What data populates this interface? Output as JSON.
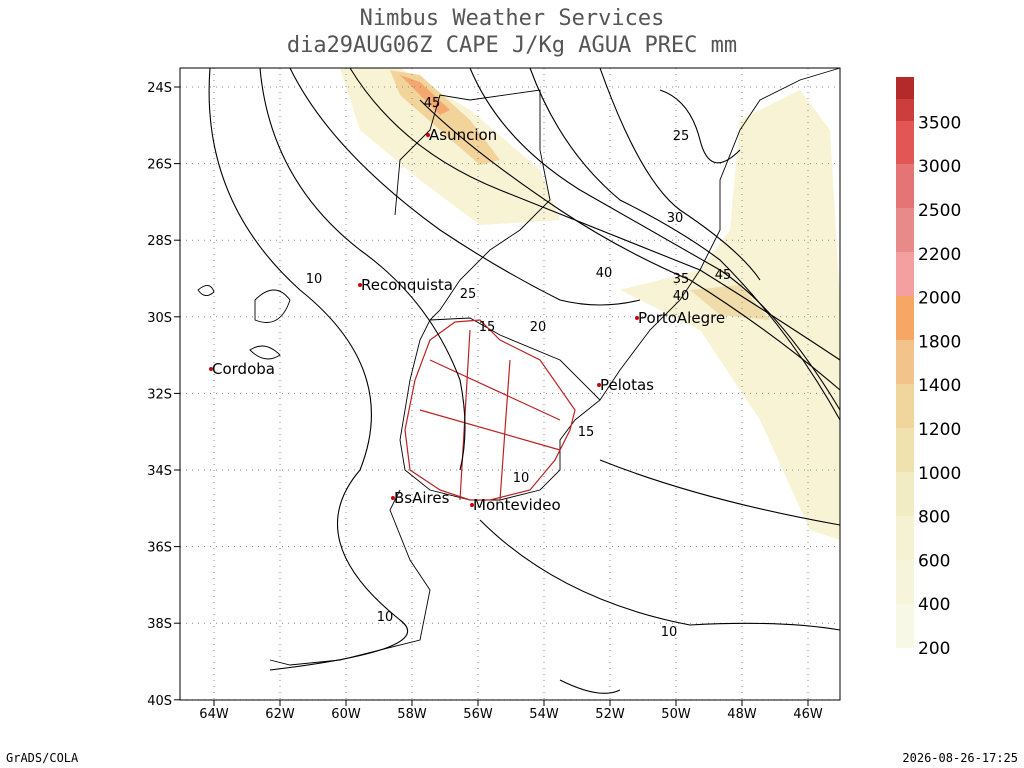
{
  "title": [
    "Nimbus Weather Services",
    "dia29AUG06Z CAPE J/Kg AGUA PREC mm"
  ],
  "lat_labels": [
    "24S",
    "26S",
    "28S",
    "30S",
    "32S",
    "34S",
    "36S",
    "38S",
    "40S"
  ],
  "lon_labels": [
    "64W",
    "62W",
    "60W",
    "58W",
    "56W",
    "54W",
    "52W",
    "50W",
    "48W",
    "46W"
  ],
  "cities": [
    "Asuncion",
    "Reconquista",
    "PortoAlegre",
    "Cordoba",
    "Pelotas",
    "BsAires",
    "Montevideo"
  ],
  "contour_labels": [
    "45",
    "25",
    "30",
    "10",
    "40",
    "35",
    "45",
    "40",
    "25",
    "15",
    "20",
    "15",
    "10",
    "10",
    "10"
  ],
  "colorbar_labels": [
    "200",
    "400",
    "600",
    "800",
    "1000",
    "1200",
    "1400",
    "1800",
    "2000",
    "2200",
    "2500",
    "3000",
    "3500"
  ],
  "footer": {
    "left": "GrADS/COLA",
    "right": "2026-08-26-17:25"
  }
}
